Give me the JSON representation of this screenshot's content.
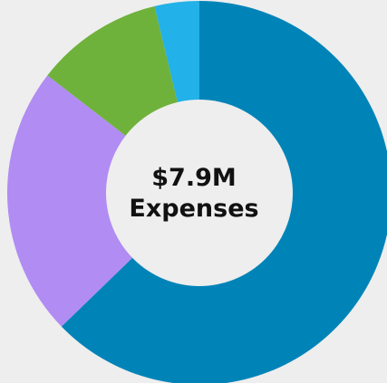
{
  "chart_data": {
    "type": "pie",
    "donut": true,
    "center_value": "$7.9M",
    "center_label": "Expenses",
    "slices": [
      {
        "value": 0.618,
        "color": "#0084b8"
      },
      {
        "value": 0.224,
        "color": "#b18cf3"
      },
      {
        "value": 0.106,
        "color": "#6fb23b"
      },
      {
        "value": 0.037,
        "color": "#22b1e8"
      }
    ],
    "start_angle_deg": 0,
    "direction": "clockwise",
    "background_color": "#eeeeee",
    "hole_color": "#eeeeee"
  }
}
